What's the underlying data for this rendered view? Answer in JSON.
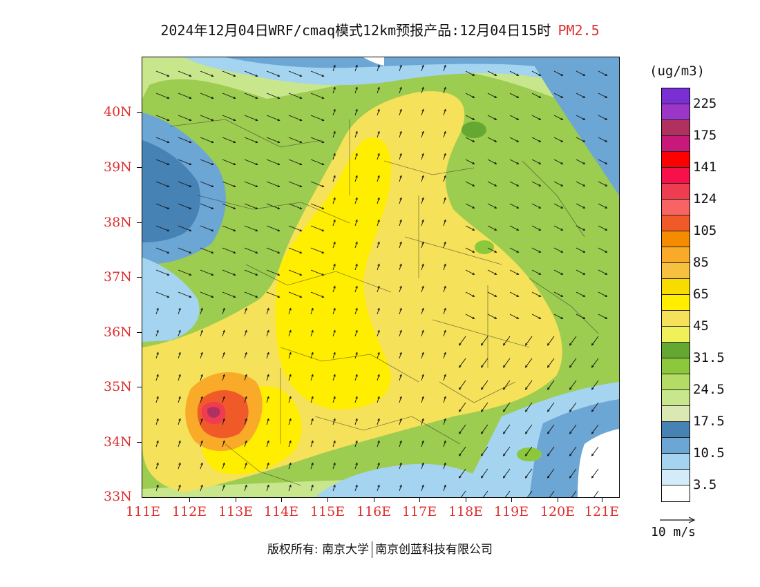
{
  "title": {
    "text": "2024年12月04日WRF/cmaq模式12km预报产品:12月04日15时",
    "species": "PM2.5"
  },
  "map": {
    "lat_labels": [
      "40N",
      "39N",
      "38N",
      "37N",
      "36N",
      "35N",
      "34N",
      "33N"
    ],
    "lon_labels": [
      "111E",
      "112E",
      "113E",
      "114E",
      "115E",
      "116E",
      "117E",
      "118E",
      "119E",
      "120E",
      "121E"
    ],
    "lat_range": [
      33,
      40.95
    ],
    "lon_range": [
      111,
      121.4
    ]
  },
  "legend": {
    "unit": "(ug/m3)",
    "labels": [
      "225",
      "175",
      "141",
      "124",
      "105",
      "85",
      "65",
      "45",
      "31.5",
      "24.5",
      "17.5",
      "10.5",
      "3.5"
    ],
    "colors": [
      "#7a2fd2",
      "#9c36c8",
      "#b03060",
      "#c8187a",
      "#ff0000",
      "#f8104a",
      "#f03c50",
      "#f86464",
      "#f05a28",
      "#f58c00",
      "#f8aa28",
      "#f8c040",
      "#f8dc00",
      "#ffee00",
      "#f5e15a",
      "#f0f05a",
      "#64a832",
      "#8cc83c",
      "#b4dc64",
      "#c8e68c",
      "#dce8b4",
      "#4682b4",
      "#6ca6d4",
      "#a4d4f0",
      "#d4ecfa",
      "#ffffff"
    ]
  },
  "wind": {
    "reference_label": "10 m/s"
  },
  "footer": {
    "copyright_prefix": "版权所有:",
    "owner_1": "南京大学",
    "owner_2": "南京创蓝科技有限公司"
  }
}
